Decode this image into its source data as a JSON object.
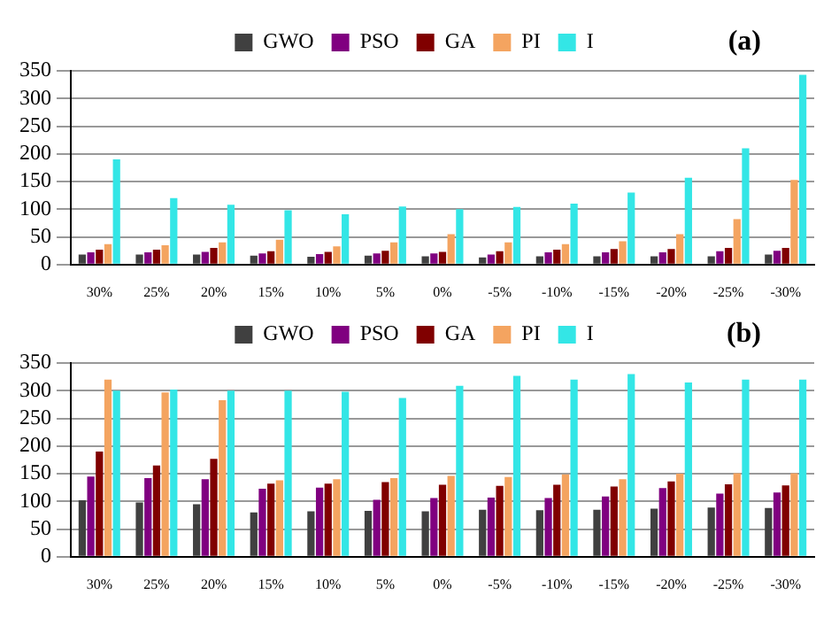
{
  "chart_data": [
    {
      "type": "bar",
      "categories": [
        "30%",
        "25%",
        "20%",
        "15%",
        "10%",
        "5%",
        "0%",
        "-5%",
        "-10%",
        "-15%",
        "-20%",
        "-25%",
        "-30%"
      ],
      "series": [
        {
          "name": "GWO",
          "color": "#404040",
          "values": [
            18,
            18,
            18,
            16,
            14,
            16,
            15,
            13,
            15,
            15,
            15,
            15,
            18
          ]
        },
        {
          "name": "PSO",
          "color": "#800080",
          "values": [
            22,
            22,
            23,
            20,
            19,
            20,
            20,
            18,
            22,
            22,
            22,
            24,
            25
          ]
        },
        {
          "name": "GA",
          "color": "#800000",
          "values": [
            27,
            27,
            30,
            24,
            23,
            25,
            23,
            24,
            27,
            28,
            28,
            30,
            30
          ]
        },
        {
          "name": "PI",
          "color": "#f4a460",
          "values": [
            37,
            35,
            40,
            45,
            33,
            40,
            55,
            40,
            37,
            42,
            55,
            82,
            153
          ]
        },
        {
          "name": "I",
          "color": "#33e6e6",
          "values": [
            190,
            120,
            108,
            98,
            91,
            105,
            100,
            104,
            110,
            130,
            157,
            210,
            343
          ]
        }
      ],
      "ylim": [
        0,
        350
      ],
      "yticks": [
        0,
        50,
        100,
        150,
        200,
        250,
        300,
        350
      ],
      "grid": "y",
      "legend": "top",
      "annotations": [
        "(a)"
      ]
    },
    {
      "type": "bar",
      "categories": [
        "30%",
        "25%",
        "20%",
        "15%",
        "10%",
        "5%",
        "0%",
        "-5%",
        "-10%",
        "-15%",
        "-20%",
        "-25%",
        "-30%"
      ],
      "series": [
        {
          "name": "GWO",
          "color": "#404040",
          "values": [
            102,
            98,
            95,
            80,
            82,
            83,
            82,
            85,
            84,
            85,
            87,
            89,
            88
          ]
        },
        {
          "name": "PSO",
          "color": "#800080",
          "values": [
            145,
            142,
            140,
            123,
            125,
            103,
            106,
            107,
            106,
            109,
            124,
            114,
            116
          ]
        },
        {
          "name": "GA",
          "color": "#800000",
          "values": [
            190,
            165,
            177,
            132,
            132,
            135,
            130,
            128,
            130,
            127,
            136,
            131,
            129
          ]
        },
        {
          "name": "PI",
          "color": "#f4a460",
          "values": [
            320,
            297,
            283,
            138,
            140,
            142,
            146,
            144,
            149,
            140,
            150,
            151,
            151
          ]
        },
        {
          "name": "I",
          "color": "#33e6e6",
          "values": [
            300,
            302,
            300,
            300,
            298,
            287,
            309,
            327,
            320,
            330,
            315,
            320,
            320
          ]
        }
      ],
      "ylim": [
        0,
        350
      ],
      "yticks": [
        0,
        50,
        100,
        150,
        200,
        250,
        300,
        350
      ],
      "grid": "y",
      "legend": "top",
      "annotations": [
        "(b)"
      ]
    }
  ]
}
